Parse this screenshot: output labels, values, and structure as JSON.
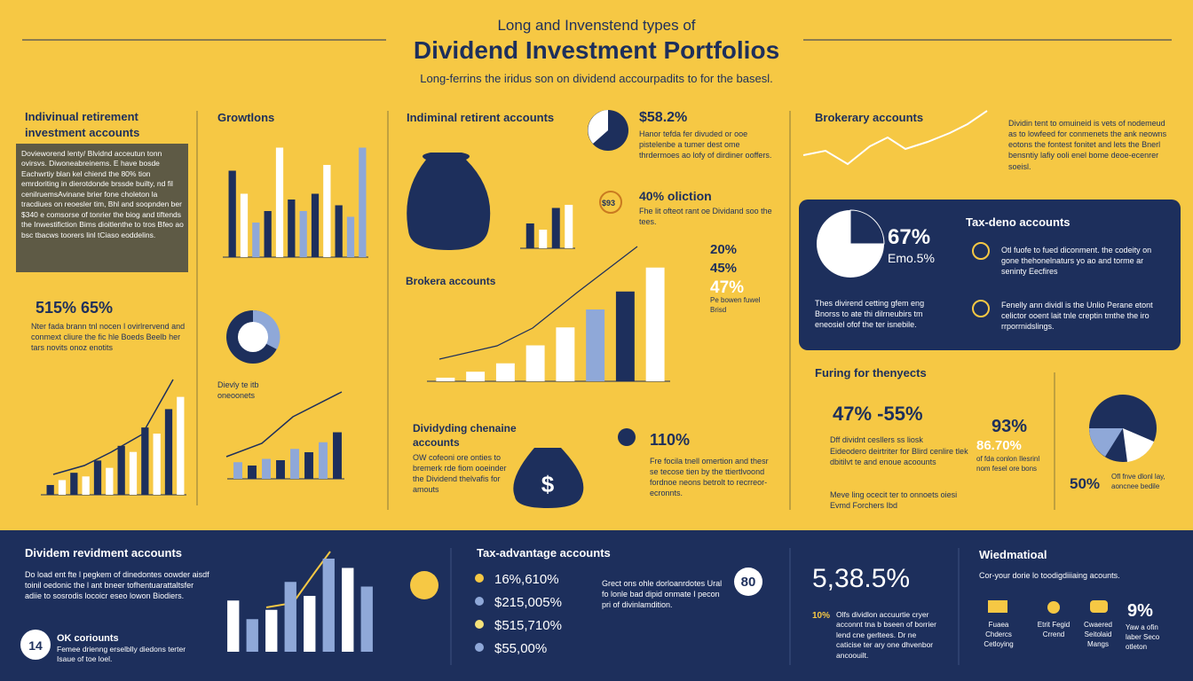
{
  "header": {
    "subtitle": "Long and Invenstend types of",
    "title": "Dividend Investment Portfolios",
    "tagline": "Long-ferrins the iridus son on dividend accourpadits to for the basesl."
  },
  "left": {
    "heading": "Indivinual retirement investment accounts",
    "box_text": "Dovieworend lenty/ Blvidnd acceutun tonn ovirsvs. Diwoneabreinems. E have bosde Eachwrtiy blan kel chiend the 80% tion emrdoriting in dierotdonde brssde builty, nd fil cenilruemsAvinane brier fone choleton la tracdiues on reoesler tim, Bhl and soopnden ber $340 e comsorse of tonrier the biog and tiftends the Inwestifiction Bims dioitlenthe to tros Bfeo ao bsc tbacws toorers linl tCiaso eoddelins.",
    "stat": "515% 65%",
    "stat_text": "Nter fada brann tnl nocen l ovirlrervend and conmext cliure the fic hle Boeds Beelb her tars novits onoz enotits"
  },
  "growth": {
    "heading": "Growtlons"
  },
  "donut_note": "Dievly te itb oneoonets",
  "middle": {
    "heading": "Indiminal retirent accounts",
    "stat1": "$58.2%",
    "stat1_text": "Hanor tefda fer divuded or ooe pistelenbe a tumer dest ome thrdermoes ao lofy of dirdiner ooffers.",
    "badge": "$93",
    "stat2": "40% oliction",
    "stat2_text": "Fhe lit ofteot rant oe Dividand soo the tees.",
    "brokerage_heading": "Brokera accounts",
    "pcts": [
      "20%",
      "45%",
      "47%"
    ],
    "pcts_text": "Pe bowen fuwel Brisd",
    "dividing_heading": "Dividyding chenaine accounts",
    "dividing_text": "OW cofeoni ore onties to bremerk rde fiom ooeinder the Dividend thelvafis for amouts",
    "stat3": "110%",
    "stat3_text": "Fre focila tnell omertion and thesr se tecose tien by the ttiertlvoond fordnoe neons betrolt to recrreor-ecronnts."
  },
  "right": {
    "heading": "Brokerary accounts",
    "text": "Dividin tent to omuineid is vets of nodemeud as to lowfeed for conmenets the ank neowns eotons the fontest fonitet and lets the Bnerl bensntiy lafiy ooli enel bome deoe-ecenrer soeisl.",
    "pie_stat": "67%",
    "pie_sub": "Emo.5%",
    "tax_heading": "Tax-deno accounts",
    "tax_text1": "Otl fuofe to fued diconment. the codeity on gone thehonelnaturs yo ao and torme ar seninty Eecfires",
    "tax_text2": "Fenelly ann dividl is the Unlio Perane etont celictor ooent lait tnle creptin tmthe the iro rrporrnidslings.",
    "panel_text": "Thes divirend cetting gfem eng Bnorss to ate thi dilrneubirs tm eneosiel ofof the ter isnebile.",
    "future_heading": "Furing for thenyects",
    "future_stat": "47% -55%",
    "future_items": [
      "Dff dividnt cesllers ss liosk",
      "Eideodero deirtriter for Blird cenlire tlek dbitilvt te and enoue acoounts",
      "Meve ling ocecit ter to onnoets oiesi Evmd Forchers Ibd"
    ],
    "stat_a": "93%",
    "stat_b": "86.70%",
    "stat_b_text": "of fda conlon Ilesrinl nom fesel ore bons",
    "stat_c": "50%",
    "stat_c_text": "Ofl fnve dlonl lay, aoncnee bedile"
  },
  "bottom": {
    "heading": "Dividem revidment accounts",
    "text": "Do load ent fte l pegkem of dinedontes oowder aisdf toinil oedonic the l ant bneer tofhentuarattaltsfer adiie to sosrodis locoicr eseo lowon Biodiers.",
    "badge": "14",
    "ok_heading": "OK coriounts",
    "ok_text": "Femee drienng erselblly diedons terter Isaue of toe loel.",
    "tax_heading": "Tax-advantage accounts",
    "tax_items": [
      "16%,610%",
      "$215,005%",
      "$515,710%",
      "$55,00%"
    ],
    "tax_text": "Grect ons ohle dorloanrdotes Ural fo lonle bad dipid onmate I pecon pri of divinlamdition.",
    "badge2": "80",
    "big_stat": "5,38.5%",
    "big_note_pct": "10%",
    "big_note": "Olfs dividlon accuurtie cryer acconnt tna b bseen of borrier lend cne gerltees. Dr ne caticise ter ary one dhvenbor ancoouilt.",
    "wide_heading": "Wiedmatioal",
    "wide_text": "Cor-your dorie lo toodigdiiiaing acounts.",
    "wide_stat": "9%",
    "wide_stat_text": "Yaw a ofin laber Seco otleton",
    "icons": [
      "Fuaea Chdercs Cetloying",
      "Etrit Fegid Crrend",
      "Cwaered Seitolaid Mangs"
    ]
  },
  "charts": [
    {
      "type": "bar",
      "values": [
        75,
        55,
        30,
        40,
        95,
        50,
        40,
        55,
        80,
        45,
        35,
        95
      ],
      "ylim": [
        0,
        100
      ],
      "colors": [
        "#1d2f5c",
        "#ffffff",
        "#8fa8d8",
        "#1d2f5c",
        "#ffffff",
        "#1d2f5c",
        "#8fa8d8",
        "#1d2f5c",
        "#ffffff",
        "#1d2f5c",
        "#8fa8d8",
        "#8fa8d8"
      ]
    },
    {
      "type": "bar",
      "values": [
        8,
        12,
        18,
        15,
        28,
        22,
        40,
        35,
        55,
        50,
        70,
        80
      ],
      "ylim": [
        0,
        100
      ],
      "colors": [
        "#1d2f5c",
        "#ffffff"
      ]
    },
    {
      "type": "bar",
      "values": [
        25,
        20,
        30,
        28,
        45,
        40,
        55,
        70
      ],
      "ylim": [
        0,
        100
      ],
      "colors": [
        "#8fa8d8",
        "#1d2f5c"
      ]
    },
    {
      "type": "bar",
      "values": [
        3,
        8,
        15,
        30,
        45,
        60,
        75,
        95
      ],
      "ylim": [
        0,
        100
      ],
      "colors": [
        "#ffffff",
        "#ffffff",
        "#ffffff",
        "#ffffff",
        "#ffffff",
        "#8fa8d8",
        "#1d2f5c",
        "#ffffff"
      ]
    },
    {
      "type": "bar",
      "values": [
        55,
        35,
        45,
        75,
        60,
        100,
        90,
        70
      ],
      "ylim": [
        0,
        100
      ],
      "colors": [
        "#ffffff",
        "#8fa8d8"
      ]
    },
    {
      "type": "bar",
      "values": [
        40,
        30,
        65,
        70
      ],
      "ylim": [
        0,
        100
      ],
      "colors": [
        "#1d2f5c",
        "#ffffff"
      ]
    }
  ]
}
